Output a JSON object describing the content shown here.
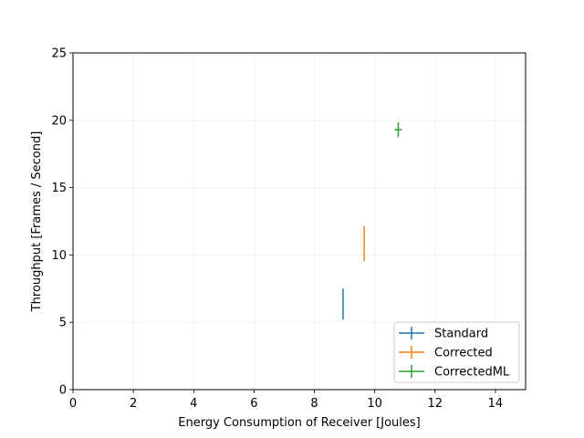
{
  "chart_data": {
    "type": "scatter",
    "title": "",
    "xlabel": "Energy Consumption of Receiver [Joules]",
    "ylabel": "Throughput [Frames / Second]",
    "xlim": [
      0,
      15
    ],
    "ylim": [
      0,
      25
    ],
    "xticks": [
      0,
      2,
      4,
      6,
      8,
      10,
      12,
      14
    ],
    "yticks": [
      0,
      5,
      10,
      15,
      20,
      25
    ],
    "grid": true,
    "legend_position": "lower-right",
    "series": [
      {
        "name": "Standard",
        "x": 8.95,
        "y": 6.35,
        "xerr": 0.0,
        "yerr": 1.15,
        "color": "#1f77b4"
      },
      {
        "name": "Corrected",
        "x": 9.65,
        "y": 10.85,
        "xerr": 0.0,
        "yerr": 1.3,
        "color": "#ff7f0e"
      },
      {
        "name": "CorrectedML",
        "x": 10.78,
        "y": 19.3,
        "xerr": 0.12,
        "yerr": 0.55,
        "color": "#2ca02c"
      }
    ]
  }
}
